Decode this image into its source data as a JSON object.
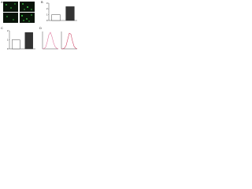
{
  "panels": {
    "labels": [
      "A",
      "B",
      "C",
      "D"
    ]
  },
  "chart_data": [
    {
      "type": "bar",
      "categories": [
        null,
        null
      ],
      "values": [
        1,
        2.4
      ],
      "colors": [
        "#ffffff",
        "#333333"
      ],
      "ylim": [
        0,
        3
      ],
      "yticks": [
        0,
        1,
        2,
        3
      ]
    },
    {
      "type": "bar",
      "categories": [
        null,
        null
      ],
      "values": [
        1,
        1.8
      ],
      "colors": [
        "#ffffff",
        "#333333"
      ],
      "ylim": [
        0,
        2
      ],
      "yticks": [
        0,
        1,
        2
      ]
    },
    {
      "type": "line",
      "x": [
        0,
        1,
        2,
        3,
        4,
        5,
        6,
        7,
        8,
        9,
        10
      ],
      "series": [
        {
          "color": "#e07aa0",
          "values": [
            0,
            2,
            10,
            40,
            80,
            95,
            70,
            35,
            12,
            3,
            0
          ]
        }
      ],
      "ylim": [
        0,
        100
      ],
      "xlim": [
        0,
        10
      ]
    },
    {
      "type": "line",
      "x": [
        0,
        1,
        2,
        3,
        4,
        5,
        6,
        7,
        8,
        9,
        10
      ],
      "series": [
        {
          "color": "#d04a6a",
          "values": [
            0,
            1,
            5,
            20,
            55,
            90,
            85,
            45,
            15,
            4,
            0
          ]
        }
      ],
      "ylim": [
        0,
        100
      ],
      "xlim": [
        0,
        10
      ]
    }
  ]
}
